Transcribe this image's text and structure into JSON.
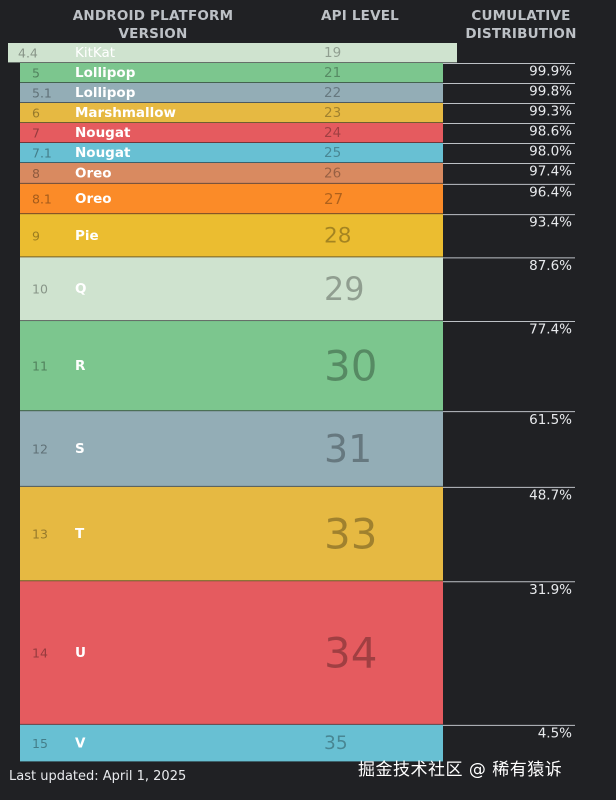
{
  "headers": {
    "version_line1": "ANDROID PLATFORM",
    "version_line2": "VERSION",
    "api": "API LEVEL",
    "cum_line1": "CUMULATIVE",
    "cum_line2": "DISTRIBUTION"
  },
  "chart_data": {
    "type": "table",
    "columns": [
      "Android Platform Version",
      "API Level",
      "Cumulative Distribution"
    ],
    "rows": [
      {
        "version": "4.4",
        "name": "KitKat",
        "api": "19",
        "cumulative": "",
        "color": "#cfe3cf"
      },
      {
        "version": "5",
        "name": "Lollipop",
        "api": "21",
        "cumulative": "99.9%",
        "color": "#7cc68e"
      },
      {
        "version": "5.1",
        "name": "Lollipop",
        "api": "22",
        "cumulative": "99.8%",
        "color": "#93adb6"
      },
      {
        "version": "6",
        "name": "Marshmallow",
        "api": "23",
        "cumulative": "99.3%",
        "color": "#e6b942"
      },
      {
        "version": "7",
        "name": "Nougat",
        "api": "24",
        "cumulative": "98.6%",
        "color": "#e55b5f"
      },
      {
        "version": "7.1",
        "name": "Nougat",
        "api": "25",
        "cumulative": "98.0%",
        "color": "#68c0d3"
      },
      {
        "version": "8",
        "name": "Oreo",
        "api": "26",
        "cumulative": "97.4%",
        "color": "#d98a60"
      },
      {
        "version": "8.1",
        "name": "Oreo",
        "api": "27",
        "cumulative": "96.4%",
        "color": "#fb8b28"
      },
      {
        "version": "9",
        "name": "Pie",
        "api": "28",
        "cumulative": "93.4%",
        "color": "#ebbd30"
      },
      {
        "version": "10",
        "name": "Q",
        "api": "29",
        "cumulative": "87.6%",
        "color": "#cfe3cf"
      },
      {
        "version": "11",
        "name": "R",
        "api": "30",
        "cumulative": "77.4%",
        "color": "#7cc68e"
      },
      {
        "version": "12",
        "name": "S",
        "api": "31",
        "cumulative": "61.5%",
        "color": "#93adb6"
      },
      {
        "version": "13",
        "name": "T",
        "api": "33",
        "cumulative": "48.7%",
        "color": "#e6b942"
      },
      {
        "version": "14",
        "name": "U",
        "api": "34",
        "cumulative": "31.9%",
        "color": "#e55b5f"
      },
      {
        "version": "15",
        "name": "V",
        "api": "35",
        "cumulative": "4.5%",
        "color": "#68c0d3"
      }
    ]
  },
  "footer": "Last updated: April 1, 2025",
  "watermark": "掘金技术社区 @ 稀有猿诉"
}
